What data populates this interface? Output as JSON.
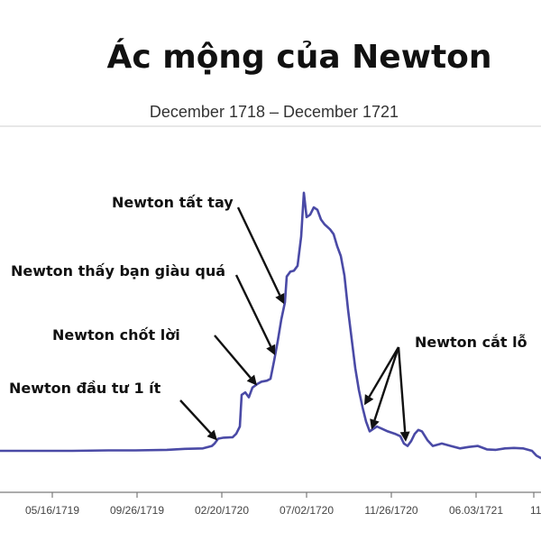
{
  "chart_data": {
    "type": "line",
    "title": "Ác mộng của Newton",
    "subtitle": "December 1718 – December 1721",
    "xlabel": "",
    "ylabel": "",
    "x_ticks": [
      "05/16/1719",
      "09/26/1719",
      "02/20/1720",
      "07/02/1720",
      "11/26/1720",
      "06.03/1721",
      "11"
    ],
    "grid": false,
    "legend": "none",
    "line_color": "#4a4aa6",
    "series": [
      {
        "values": [
          [
            0,
            100
          ],
          [
            40,
            100
          ],
          [
            80,
            100
          ],
          [
            120,
            101
          ],
          [
            150,
            101
          ],
          [
            185,
            102
          ],
          [
            205,
            104
          ],
          [
            225,
            105
          ],
          [
            235,
            110
          ],
          [
            238,
            115
          ],
          [
            242,
            125
          ],
          [
            248,
            127
          ],
          [
            258,
            128
          ],
          [
            262,
            135
          ],
          [
            266,
            150
          ],
          [
            268,
            215
          ],
          [
            272,
            220
          ],
          [
            276,
            210
          ],
          [
            280,
            230
          ],
          [
            286,
            238
          ],
          [
            290,
            242
          ],
          [
            296,
            244
          ],
          [
            300,
            248
          ],
          [
            304,
            285
          ],
          [
            308,
            325
          ],
          [
            312,
            370
          ],
          [
            316,
            405
          ],
          [
            318,
            458
          ],
          [
            322,
            468
          ],
          [
            326,
            470
          ],
          [
            330,
            480
          ],
          [
            334,
            540
          ],
          [
            337,
            630
          ],
          [
            340,
            580
          ],
          [
            344,
            585
          ],
          [
            348,
            600
          ],
          [
            352,
            595
          ],
          [
            356,
            575
          ],
          [
            360,
            565
          ],
          [
            366,
            555
          ],
          [
            370,
            545
          ],
          [
            374,
            520
          ],
          [
            378,
            500
          ],
          [
            382,
            460
          ],
          [
            386,
            390
          ],
          [
            390,
            330
          ],
          [
            394,
            270
          ],
          [
            398,
            225
          ],
          [
            402,
            190
          ],
          [
            406,
            160
          ],
          [
            410,
            140
          ],
          [
            414,
            145
          ],
          [
            418,
            150
          ],
          [
            424,
            145
          ],
          [
            430,
            140
          ],
          [
            438,
            135
          ],
          [
            444,
            130
          ],
          [
            448,
            115
          ],
          [
            452,
            110
          ],
          [
            456,
            120
          ],
          [
            460,
            135
          ],
          [
            464,
            143
          ],
          [
            468,
            140
          ],
          [
            474,
            122
          ],
          [
            480,
            110
          ],
          [
            490,
            115
          ],
          [
            500,
            110
          ],
          [
            510,
            105
          ],
          [
            520,
            108
          ],
          [
            530,
            110
          ],
          [
            540,
            103
          ],
          [
            550,
            102
          ],
          [
            560,
            105
          ],
          [
            570,
            106
          ],
          [
            580,
            105
          ],
          [
            590,
            100
          ],
          [
            595,
            90
          ],
          [
            600,
            85
          ]
        ]
      }
    ],
    "annotations": [
      {
        "text": "Newton tất tay",
        "points_to": [
          316,
          405
        ]
      },
      {
        "text": "Newton thấy bạn giàu quá",
        "points_to": [
          306,
          300
        ]
      },
      {
        "text": "Newton chốt lời",
        "points_to": [
          286,
          238
        ]
      },
      {
        "text": "Newton đầu tư 1 ít",
        "points_to": [
          242,
          125
        ]
      },
      {
        "text": "Newton cắt lỗ",
        "points_to": [
          [
            402,
            190
          ],
          [
            410,
            140
          ],
          [
            448,
            115
          ]
        ]
      }
    ]
  }
}
